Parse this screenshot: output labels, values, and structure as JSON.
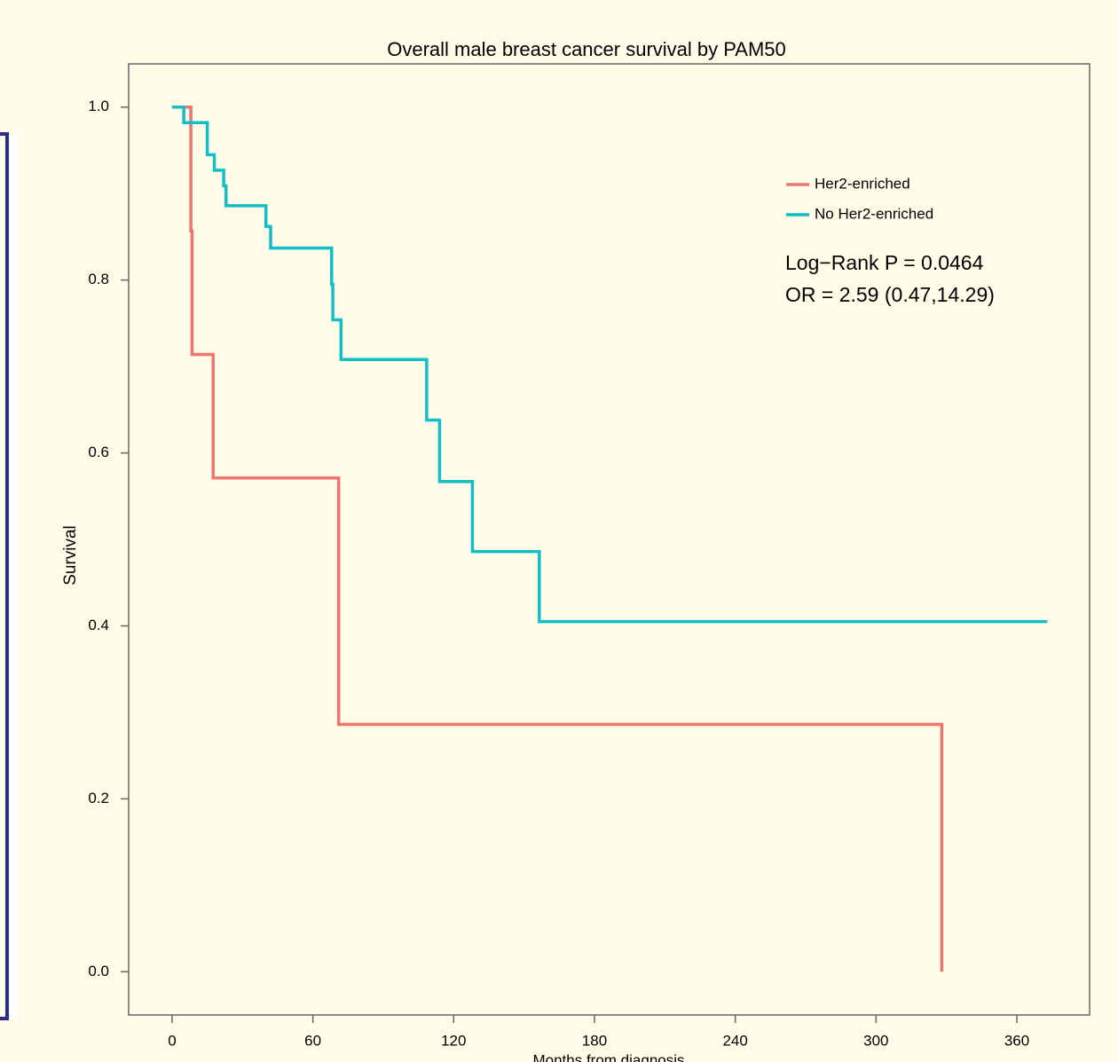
{
  "chart_data": {
    "type": "line",
    "step": true,
    "title": "Overall male breast cancer survival by PAM50",
    "x_label": "Months from diagnosis",
    "y_label": "Survival",
    "series": [
      {
        "name": "Her2-enriched",
        "color": "#f07470",
        "x": [
          5,
          8,
          8.5,
          17.5,
          71,
          328
        ],
        "values": [
          1,
          0.857,
          0.714,
          0.571,
          0.286,
          0
        ]
      },
      {
        "name": "No Her2-enriched",
        "color": "#12bfc6",
        "x": [
          0,
          5,
          15,
          18,
          22,
          23,
          40,
          42,
          68,
          68.5,
          72,
          108.5,
          114,
          128,
          156.5,
          373
        ],
        "values": [
          1,
          0.982,
          0.945,
          0.927,
          0.909,
          0.886,
          0.862,
          0.837,
          0.795,
          0.754,
          0.708,
          0.638,
          0.567,
          0.486,
          0.405,
          0.405
        ]
      }
    ],
    "annotations": [
      "Log−Rank P = 0.0464",
      "OR = 2.59 (0.47,14.29)"
    ],
    "xlim": [
      -18.5,
      391
    ],
    "ylim": [
      -0.05,
      1.05
    ],
    "xticks": [
      0,
      60,
      120,
      180,
      240,
      300,
      360
    ],
    "yticks": [
      {
        "value": 0,
        "label": "0.0"
      },
      {
        "value": 0.2,
        "label": "0.2"
      },
      {
        "value": 0.4,
        "label": "0.4"
      },
      {
        "value": 0.6,
        "label": "0.6"
      },
      {
        "value": 0.8,
        "label": "0.8"
      },
      {
        "value": 1,
        "label": "1.0"
      }
    ],
    "legend": "top-right"
  }
}
